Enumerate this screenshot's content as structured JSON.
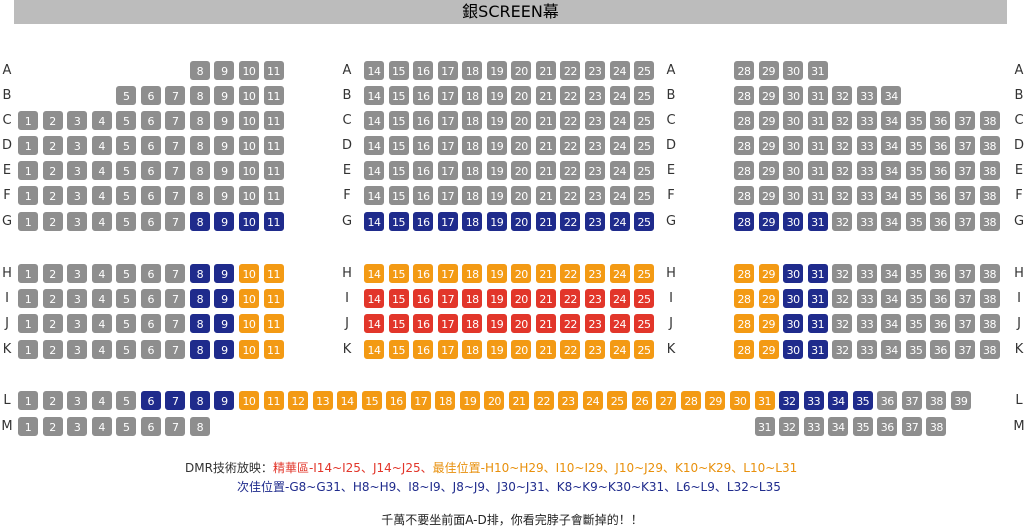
{
  "screen_title": "銀SCREEN幕",
  "colors": {
    "normal": "#8e8e8e",
    "second": "#1f2b8c",
    "best": "#f39a14",
    "premium": "#e2362a"
  },
  "rows": [
    {
      "label": "A",
      "sections": [
        {
          "from": 8,
          "to": 11,
          "status": "normal"
        },
        {
          "from": 14,
          "to": 25,
          "status": "normal"
        },
        {
          "from": 28,
          "to": 31,
          "status": "normal"
        }
      ]
    },
    {
      "label": "B",
      "sections": [
        {
          "from": 5,
          "to": 11,
          "status": "normal"
        },
        {
          "from": 14,
          "to": 25,
          "status": "normal"
        },
        {
          "from": 28,
          "to": 34,
          "status": "normal"
        }
      ]
    },
    {
      "label": "C",
      "sections": [
        {
          "from": 1,
          "to": 11,
          "status": "normal"
        },
        {
          "from": 14,
          "to": 25,
          "status": "normal"
        },
        {
          "from": 28,
          "to": 38,
          "status": "normal"
        }
      ]
    },
    {
      "label": "D",
      "sections": [
        {
          "from": 1,
          "to": 11,
          "status": "normal"
        },
        {
          "from": 14,
          "to": 25,
          "status": "normal"
        },
        {
          "from": 28,
          "to": 38,
          "status": "normal"
        }
      ]
    },
    {
      "label": "E",
      "sections": [
        {
          "from": 1,
          "to": 11,
          "status": "normal"
        },
        {
          "from": 14,
          "to": 25,
          "status": "normal"
        },
        {
          "from": 28,
          "to": 38,
          "status": "normal"
        }
      ]
    },
    {
      "label": "F",
      "sections": [
        {
          "from": 1,
          "to": 11,
          "status": "normal"
        },
        {
          "from": 14,
          "to": 25,
          "status": "normal"
        },
        {
          "from": 28,
          "to": 38,
          "status": "normal"
        }
      ]
    },
    {
      "label": "G",
      "sections": [
        {
          "from": 1,
          "to": 7,
          "status": "normal"
        },
        {
          "from": 8,
          "to": 11,
          "status": "second"
        },
        {
          "from": 14,
          "to": 25,
          "status": "second"
        },
        {
          "from": 28,
          "to": 31,
          "status": "second"
        },
        {
          "from": 32,
          "to": 38,
          "status": "normal"
        }
      ]
    },
    {
      "label": "H",
      "sections": [
        {
          "from": 1,
          "to": 7,
          "status": "normal"
        },
        {
          "from": 8,
          "to": 9,
          "status": "second"
        },
        {
          "from": 10,
          "to": 11,
          "status": "best"
        },
        {
          "from": 14,
          "to": 25,
          "status": "best"
        },
        {
          "from": 28,
          "to": 29,
          "status": "best"
        },
        {
          "from": 30,
          "to": 31,
          "status": "second"
        },
        {
          "from": 32,
          "to": 38,
          "status": "normal"
        }
      ]
    },
    {
      "label": "I",
      "sections": [
        {
          "from": 1,
          "to": 7,
          "status": "normal"
        },
        {
          "from": 8,
          "to": 9,
          "status": "second"
        },
        {
          "from": 10,
          "to": 11,
          "status": "best"
        },
        {
          "from": 14,
          "to": 25,
          "status": "premium"
        },
        {
          "from": 28,
          "to": 29,
          "status": "best"
        },
        {
          "from": 30,
          "to": 31,
          "status": "second"
        },
        {
          "from": 32,
          "to": 38,
          "status": "normal"
        }
      ]
    },
    {
      "label": "J",
      "sections": [
        {
          "from": 1,
          "to": 7,
          "status": "normal"
        },
        {
          "from": 8,
          "to": 9,
          "status": "second"
        },
        {
          "from": 10,
          "to": 11,
          "status": "best"
        },
        {
          "from": 14,
          "to": 25,
          "status": "premium"
        },
        {
          "from": 28,
          "to": 29,
          "status": "best"
        },
        {
          "from": 30,
          "to": 31,
          "status": "second"
        },
        {
          "from": 32,
          "to": 38,
          "status": "normal"
        }
      ]
    },
    {
      "label": "K",
      "sections": [
        {
          "from": 1,
          "to": 7,
          "status": "normal"
        },
        {
          "from": 8,
          "to": 9,
          "status": "second"
        },
        {
          "from": 10,
          "to": 11,
          "status": "best"
        },
        {
          "from": 14,
          "to": 25,
          "status": "best"
        },
        {
          "from": 28,
          "to": 29,
          "status": "best"
        },
        {
          "from": 30,
          "to": 31,
          "status": "second"
        },
        {
          "from": 32,
          "to": 38,
          "status": "normal"
        }
      ]
    },
    {
      "label": "L",
      "sections": [
        {
          "from": 1,
          "to": 5,
          "status": "normal"
        },
        {
          "from": 6,
          "to": 9,
          "status": "second"
        },
        {
          "from": 10,
          "to": 31,
          "status": "best"
        },
        {
          "from": 32,
          "to": 35,
          "status": "second"
        },
        {
          "from": 36,
          "to": 39,
          "status": "normal"
        }
      ]
    },
    {
      "label": "M",
      "sections": [
        {
          "from": 1,
          "to": 8,
          "status": "normal"
        },
        {
          "from": 31,
          "to": 38,
          "status": "normal"
        }
      ]
    }
  ],
  "legend": {
    "prefix": "DMR技術放映：",
    "premium": "精華區-I14~I25、J14~J25",
    "sep": "、",
    "best": "最佳位置-H10~H29、I10~I29、J10~J29、K10~K29、L10~L31",
    "second": "次佳位置-G8~G31、H8~H9、I8~I9、J8~J9、J30~J31、K8~K9~K30~K31、L6~L9、L32~L35"
  },
  "note": "千萬不要坐前面A-D排，你看完脖子會斷掉的！！"
}
